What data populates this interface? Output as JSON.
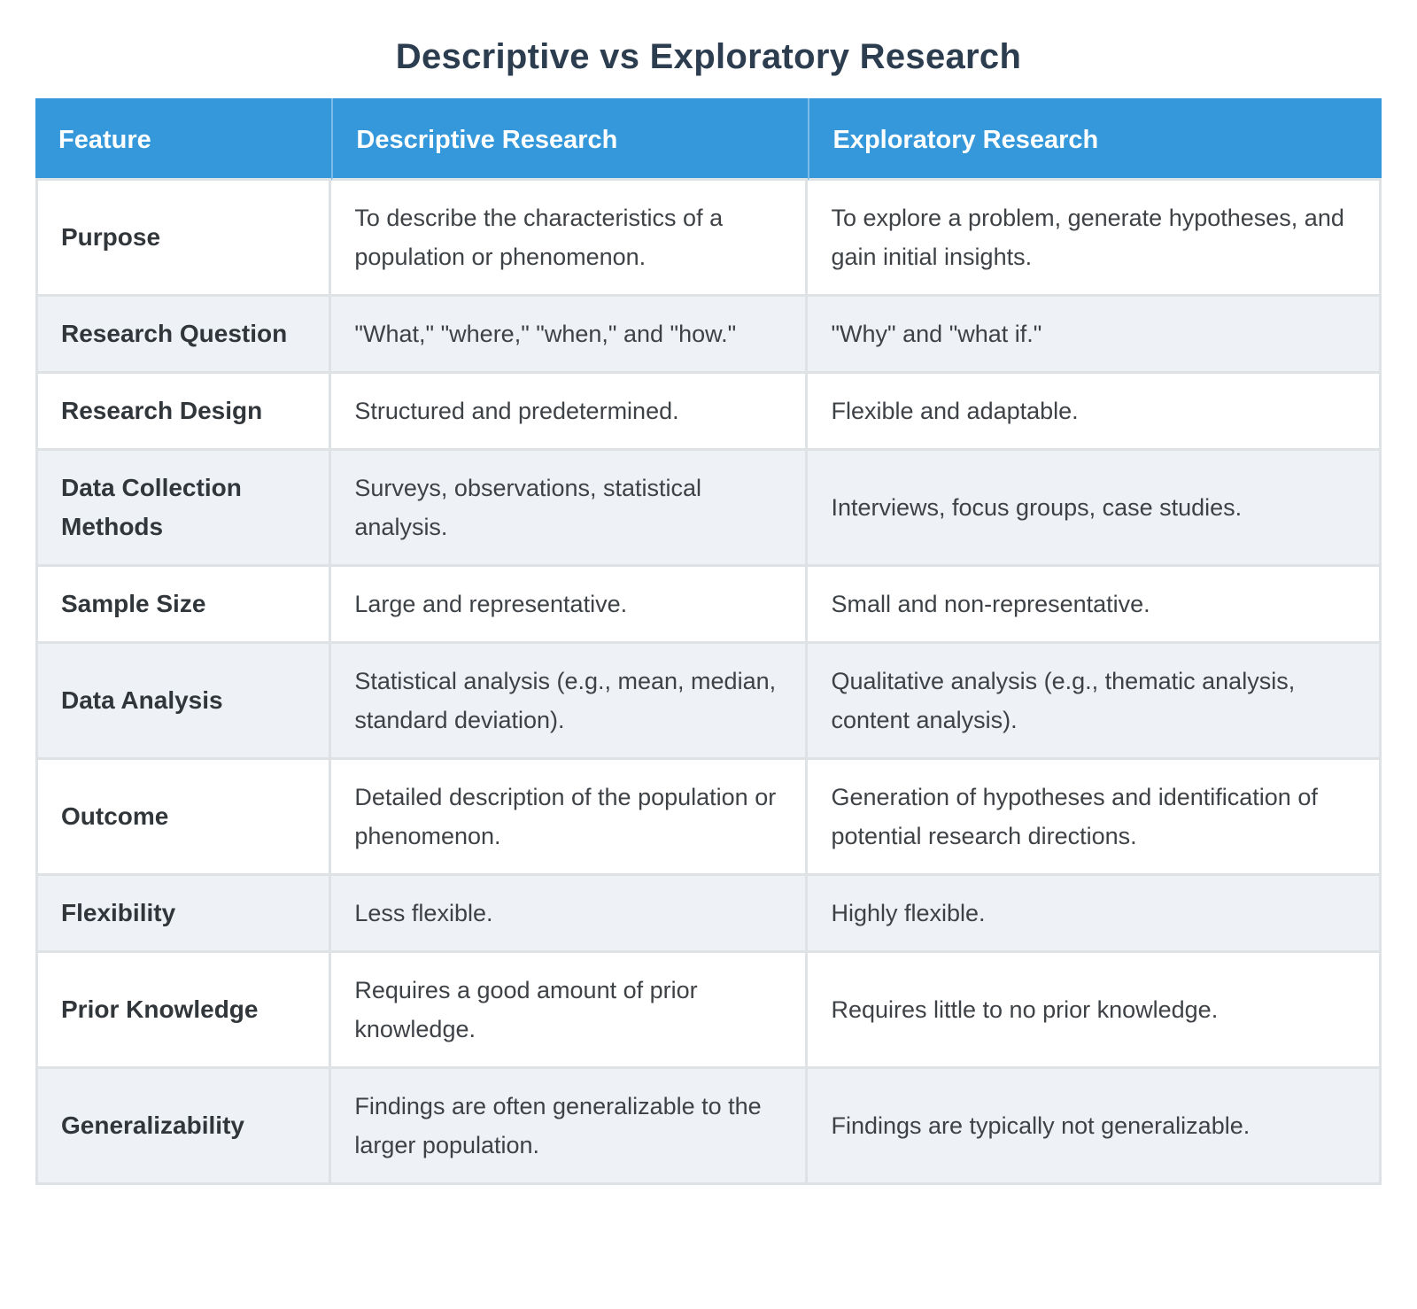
{
  "page": {
    "title": "Descriptive vs Exploratory Research"
  },
  "colors": {
    "header_bg": "#3498db",
    "header_text": "#ffffff",
    "title_text": "#2c3d50",
    "body_text": "#3e4246",
    "alt_row_bg": "#eef1f6",
    "border": "#dfe2e5"
  },
  "table": {
    "headers": [
      "Feature",
      "Descriptive Research",
      "Exploratory Research"
    ],
    "rows": [
      {
        "feature": "Purpose",
        "descriptive": "To describe the characteristics of a population or phenomenon.",
        "exploratory": "To explore a problem, generate hypotheses, and gain initial insights."
      },
      {
        "feature": "Research Question",
        "descriptive": "\"What,\" \"where,\" \"when,\" and \"how.\"",
        "exploratory": "\"Why\" and \"what if.\""
      },
      {
        "feature": "Research Design",
        "descriptive": "Structured and predetermined.",
        "exploratory": "Flexible and adaptable."
      },
      {
        "feature": "Data Collection Methods",
        "descriptive": "Surveys, observations, statistical analysis.",
        "exploratory": "Interviews, focus groups, case studies."
      },
      {
        "feature": "Sample Size",
        "descriptive": "Large and representative.",
        "exploratory": "Small and non-representative."
      },
      {
        "feature": "Data Analysis",
        "descriptive": "Statistical analysis (e.g., mean, median, standard deviation).",
        "exploratory": "Qualitative analysis (e.g., thematic analysis, content analysis)."
      },
      {
        "feature": "Outcome",
        "descriptive": "Detailed description of the population or phenomenon.",
        "exploratory": "Generation of hypotheses and identification of potential research directions."
      },
      {
        "feature": "Flexibility",
        "descriptive": "Less flexible.",
        "exploratory": "Highly flexible."
      },
      {
        "feature": "Prior Knowledge",
        "descriptive": "Requires a good amount of prior knowledge.",
        "exploratory": "Requires little to no prior knowledge."
      },
      {
        "feature": "Generalizability",
        "descriptive": "Findings are often generalizable to the larger population.",
        "exploratory": "Findings are typically not generalizable."
      }
    ]
  }
}
